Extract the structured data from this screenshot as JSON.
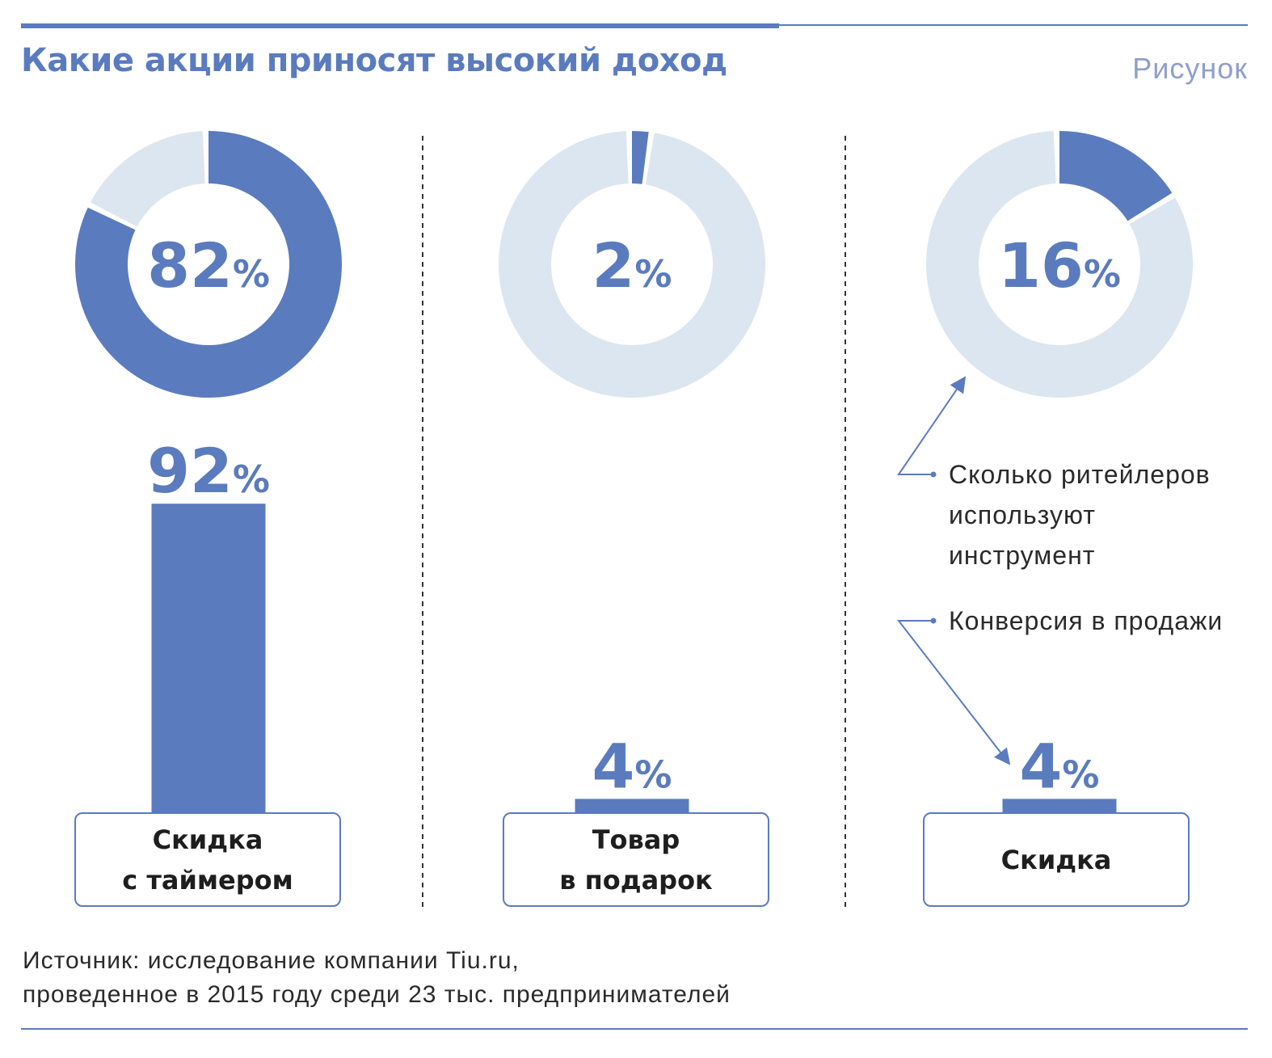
{
  "header": {
    "title": "Какие акции приносят высокий доход",
    "figure_label": "Рисунок"
  },
  "colors": {
    "accent": "#5b7bbf",
    "light": "#dce6f1",
    "text": "#1e1e1e"
  },
  "chart_data": {
    "type": "donut+bar",
    "title": "Какие акции приносят высокий доход",
    "legend": {
      "donut": "Сколько ритейлеров используют инструмент",
      "bar": "Конверсия в продажи"
    },
    "categories": [
      {
        "label": "Скидка с таймером",
        "donut_value": 82,
        "bar_value": 92
      },
      {
        "label": "Товар в подарок",
        "donut_value": 2,
        "bar_value": 4
      },
      {
        "label": "Скидка",
        "donut_value": 16,
        "bar_value": 4
      }
    ],
    "unit": "%",
    "bar_ylim": [
      0,
      100
    ]
  },
  "annotations": {
    "usage_lines": [
      "Сколько ритейлеров",
      "используют",
      "инструмент"
    ],
    "conversion": "Конверсия в продажи"
  },
  "labels": {
    "col1": "Скидка\nс таймером",
    "col2": "Товар\nв подарок",
    "col3": "Скидка"
  },
  "source": {
    "line1": "Источник: исследование компании Tiu.ru,",
    "line2": "проведенное в 2015 году среди 23 тыс. предпринимателей"
  }
}
